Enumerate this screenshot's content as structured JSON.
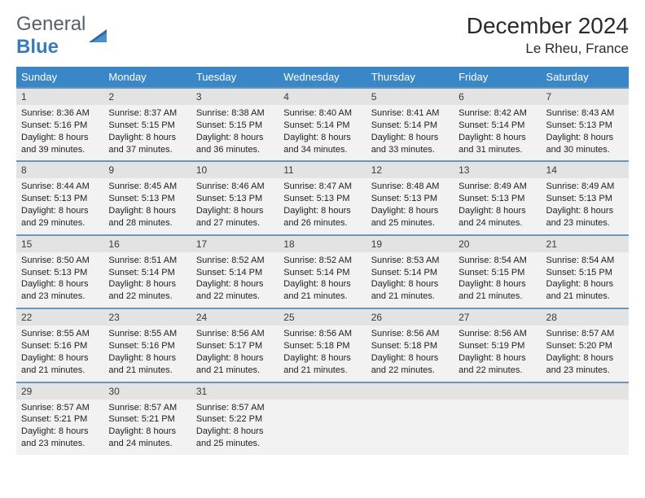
{
  "logo": {
    "text1": "General",
    "text2": "Blue"
  },
  "title": "December 2024",
  "subtitle": "Le Rheu, France",
  "colors": {
    "header_bg": "#3a87c8",
    "row_sep": "#6a96be",
    "daynum_bg": "#e3e3e3",
    "cell_bg": "#f2f2f2"
  },
  "weekdays": [
    "Sunday",
    "Monday",
    "Tuesday",
    "Wednesday",
    "Thursday",
    "Friday",
    "Saturday"
  ],
  "days": [
    {
      "n": "1",
      "sr": "8:36 AM",
      "ss": "5:16 PM",
      "dl": "8 hours and 39 minutes."
    },
    {
      "n": "2",
      "sr": "8:37 AM",
      "ss": "5:15 PM",
      "dl": "8 hours and 37 minutes."
    },
    {
      "n": "3",
      "sr": "8:38 AM",
      "ss": "5:15 PM",
      "dl": "8 hours and 36 minutes."
    },
    {
      "n": "4",
      "sr": "8:40 AM",
      "ss": "5:14 PM",
      "dl": "8 hours and 34 minutes."
    },
    {
      "n": "5",
      "sr": "8:41 AM",
      "ss": "5:14 PM",
      "dl": "8 hours and 33 minutes."
    },
    {
      "n": "6",
      "sr": "8:42 AM",
      "ss": "5:14 PM",
      "dl": "8 hours and 31 minutes."
    },
    {
      "n": "7",
      "sr": "8:43 AM",
      "ss": "5:13 PM",
      "dl": "8 hours and 30 minutes."
    },
    {
      "n": "8",
      "sr": "8:44 AM",
      "ss": "5:13 PM",
      "dl": "8 hours and 29 minutes."
    },
    {
      "n": "9",
      "sr": "8:45 AM",
      "ss": "5:13 PM",
      "dl": "8 hours and 28 minutes."
    },
    {
      "n": "10",
      "sr": "8:46 AM",
      "ss": "5:13 PM",
      "dl": "8 hours and 27 minutes."
    },
    {
      "n": "11",
      "sr": "8:47 AM",
      "ss": "5:13 PM",
      "dl": "8 hours and 26 minutes."
    },
    {
      "n": "12",
      "sr": "8:48 AM",
      "ss": "5:13 PM",
      "dl": "8 hours and 25 minutes."
    },
    {
      "n": "13",
      "sr": "8:49 AM",
      "ss": "5:13 PM",
      "dl": "8 hours and 24 minutes."
    },
    {
      "n": "14",
      "sr": "8:49 AM",
      "ss": "5:13 PM",
      "dl": "8 hours and 23 minutes."
    },
    {
      "n": "15",
      "sr": "8:50 AM",
      "ss": "5:13 PM",
      "dl": "8 hours and 23 minutes."
    },
    {
      "n": "16",
      "sr": "8:51 AM",
      "ss": "5:14 PM",
      "dl": "8 hours and 22 minutes."
    },
    {
      "n": "17",
      "sr": "8:52 AM",
      "ss": "5:14 PM",
      "dl": "8 hours and 22 minutes."
    },
    {
      "n": "18",
      "sr": "8:52 AM",
      "ss": "5:14 PM",
      "dl": "8 hours and 21 minutes."
    },
    {
      "n": "19",
      "sr": "8:53 AM",
      "ss": "5:14 PM",
      "dl": "8 hours and 21 minutes."
    },
    {
      "n": "20",
      "sr": "8:54 AM",
      "ss": "5:15 PM",
      "dl": "8 hours and 21 minutes."
    },
    {
      "n": "21",
      "sr": "8:54 AM",
      "ss": "5:15 PM",
      "dl": "8 hours and 21 minutes."
    },
    {
      "n": "22",
      "sr": "8:55 AM",
      "ss": "5:16 PM",
      "dl": "8 hours and 21 minutes."
    },
    {
      "n": "23",
      "sr": "8:55 AM",
      "ss": "5:16 PM",
      "dl": "8 hours and 21 minutes."
    },
    {
      "n": "24",
      "sr": "8:56 AM",
      "ss": "5:17 PM",
      "dl": "8 hours and 21 minutes."
    },
    {
      "n": "25",
      "sr": "8:56 AM",
      "ss": "5:18 PM",
      "dl": "8 hours and 21 minutes."
    },
    {
      "n": "26",
      "sr": "8:56 AM",
      "ss": "5:18 PM",
      "dl": "8 hours and 22 minutes."
    },
    {
      "n": "27",
      "sr": "8:56 AM",
      "ss": "5:19 PM",
      "dl": "8 hours and 22 minutes."
    },
    {
      "n": "28",
      "sr": "8:57 AM",
      "ss": "5:20 PM",
      "dl": "8 hours and 23 minutes."
    },
    {
      "n": "29",
      "sr": "8:57 AM",
      "ss": "5:21 PM",
      "dl": "8 hours and 23 minutes."
    },
    {
      "n": "30",
      "sr": "8:57 AM",
      "ss": "5:21 PM",
      "dl": "8 hours and 24 minutes."
    },
    {
      "n": "31",
      "sr": "8:57 AM",
      "ss": "5:22 PM",
      "dl": "8 hours and 25 minutes."
    }
  ],
  "labels": {
    "sunrise": "Sunrise: ",
    "sunset": "Sunset: ",
    "daylight": "Daylight: "
  },
  "calendar": {
    "start_weekday": 0,
    "trailing_empty": 4
  }
}
